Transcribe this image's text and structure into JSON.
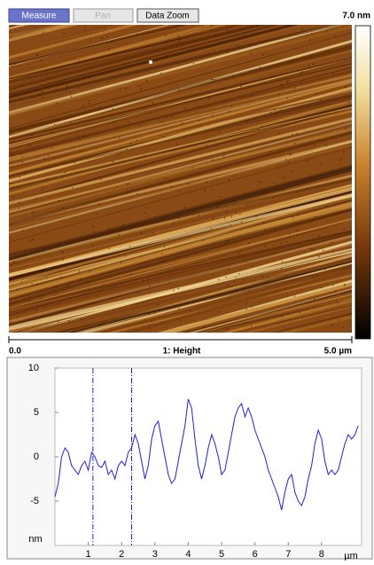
{
  "toolbar": {
    "buttons": [
      "Measure",
      "Pan",
      "Data Zoom"
    ]
  },
  "image": {
    "scale_max": "7.0 nm",
    "x_start": "0.0",
    "channel": "1: Height",
    "x_end": "5.0 µm"
  },
  "chart_data": {
    "type": "line",
    "x": [
      0,
      0.1,
      0.2,
      0.3,
      0.4,
      0.5,
      0.6,
      0.7,
      0.8,
      0.9,
      1.0,
      1.1,
      1.2,
      1.3,
      1.4,
      1.5,
      1.6,
      1.7,
      1.8,
      1.9,
      2.0,
      2.1,
      2.2,
      2.3,
      2.4,
      2.5,
      2.6,
      2.7,
      2.8,
      2.9,
      3.0,
      3.1,
      3.2,
      3.3,
      3.4,
      3.5,
      3.6,
      3.7,
      3.8,
      3.9,
      4.0,
      4.1,
      4.2,
      4.3,
      4.4,
      4.5,
      4.6,
      4.7,
      4.8,
      4.9,
      5.0,
      5.1,
      5.2,
      5.3,
      5.4,
      5.5,
      5.6,
      5.7,
      5.8,
      5.9,
      6.0,
      6.1,
      6.2,
      6.3,
      6.4,
      6.5,
      6.6,
      6.7,
      6.8,
      6.9,
      7.0,
      7.1,
      7.2,
      7.3,
      7.4,
      7.5,
      7.6,
      7.7,
      7.8,
      7.9,
      8.0,
      8.1,
      8.2,
      8.3,
      8.4,
      8.5,
      8.6,
      8.7,
      8.8,
      8.9,
      9.0,
      9.1
    ],
    "values": [
      -4.5,
      -3,
      0,
      1,
      0.5,
      -1,
      -1.5,
      -2,
      -1,
      -0.5,
      -1.5,
      0.5,
      0,
      -1,
      -1.2,
      -0.5,
      -2,
      -1.5,
      -2.5,
      -1,
      -0.5,
      -1,
      0.5,
      1,
      2.5,
      1.5,
      -0.5,
      -2.5,
      -1,
      2,
      3.5,
      4,
      2,
      0,
      -2,
      -3,
      -2.5,
      -0.5,
      1.5,
      3.5,
      6.5,
      5.5,
      2,
      -1,
      -2.5,
      -1,
      1,
      2.5,
      1.5,
      0,
      -2,
      -1.5,
      0.5,
      2.5,
      4.5,
      5.5,
      6,
      4.5,
      5.5,
      4.5,
      3,
      2,
      1,
      0,
      -1.5,
      -2.5,
      -3.5,
      -4.5,
      -6,
      -4,
      -2.5,
      -2,
      -4,
      -5,
      -5.5,
      -4.5,
      -2.5,
      -1,
      1.5,
      3,
      2,
      -0.5,
      -2,
      -1.5,
      -2,
      -1.5,
      0,
      1.5,
      2.5,
      2,
      2.5,
      3.5
    ],
    "color": "#1f1fdc",
    "xlim": [
      0,
      9.2
    ],
    "ylim": [
      -10,
      10
    ],
    "xticks": [
      1,
      2,
      3,
      4,
      5,
      6,
      7,
      8
    ],
    "yticks": [
      -5,
      0,
      5,
      10
    ],
    "y_unit": "nm",
    "x_unit": "µm",
    "cursor_x": [
      1.14,
      2.3
    ]
  }
}
